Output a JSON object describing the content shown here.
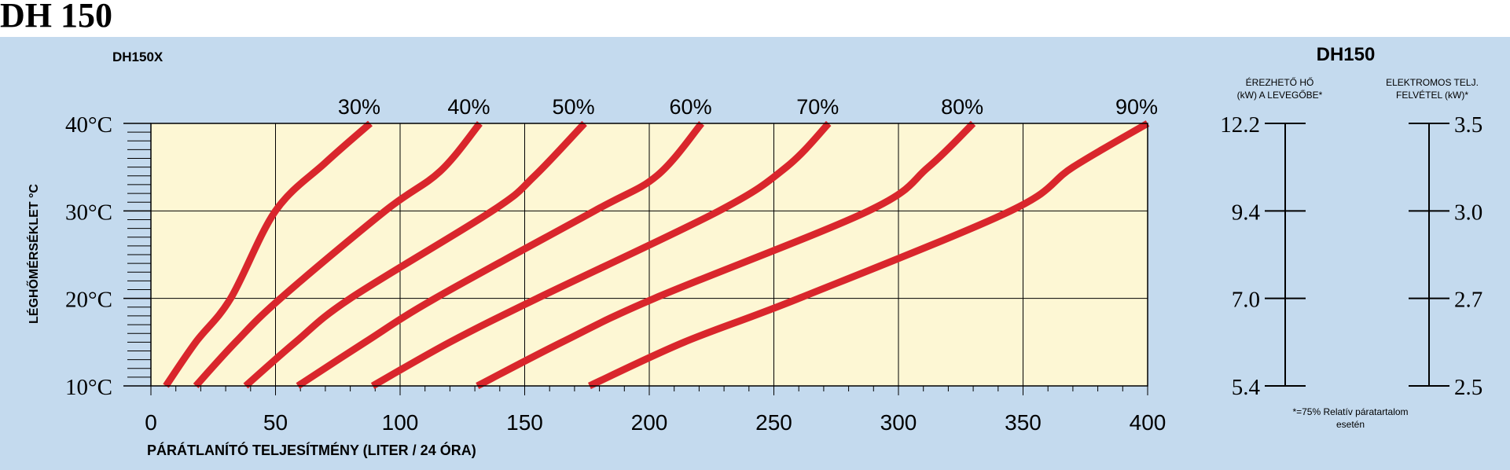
{
  "page_title": "DH 150",
  "chart_data": {
    "type": "line",
    "subtitle": "DH150X",
    "xlabel": "PÁRÁTLANÍTÓ TELJESÍTMÉNY (LITER / 24 ÓRA)",
    "ylabel": "LÉGHŐMÉRSÉKLET °C",
    "xlim": [
      0,
      400
    ],
    "ylim": [
      10,
      40
    ],
    "x_ticks": [
      0,
      50,
      100,
      150,
      200,
      250,
      300,
      350,
      400
    ],
    "x_tick_labels": [
      "0",
      "50",
      "100",
      "150",
      "200",
      "250",
      "300",
      "350",
      "400"
    ],
    "y_ticks": [
      10,
      20,
      30,
      40
    ],
    "y_tick_labels": [
      "10°C",
      "20°C",
      "30°C",
      "40°C"
    ],
    "grid": true,
    "colors": {
      "plot_bg": "#fdf7d4",
      "panel_bg": "#c4daee",
      "curve": "#d9262c",
      "grid": "#000000"
    },
    "series": [
      {
        "name": "30%",
        "points": [
          [
            6,
            10
          ],
          [
            18,
            15
          ],
          [
            32,
            20
          ],
          [
            50,
            30
          ],
          [
            70,
            35.5
          ],
          [
            88,
            40
          ]
        ]
      },
      {
        "name": "40%",
        "points": [
          [
            18,
            10
          ],
          [
            34,
            15
          ],
          [
            52,
            20
          ],
          [
            94,
            30
          ],
          [
            116,
            34.5
          ],
          [
            132,
            40
          ]
        ]
      },
      {
        "name": "50%",
        "points": [
          [
            38,
            10
          ],
          [
            58,
            15
          ],
          [
            80,
            20
          ],
          [
            137,
            30
          ],
          [
            154,
            34
          ],
          [
            174,
            40
          ]
        ]
      },
      {
        "name": "60%",
        "points": [
          [
            59,
            10
          ],
          [
            86,
            15
          ],
          [
            114,
            20
          ],
          [
            178,
            30
          ],
          [
            203,
            34
          ],
          [
            221,
            40
          ]
        ]
      },
      {
        "name": "70%",
        "points": [
          [
            89,
            10
          ],
          [
            120,
            15
          ],
          [
            155,
            20
          ],
          [
            228,
            30
          ],
          [
            255,
            35
          ],
          [
            272,
            40
          ]
        ]
      },
      {
        "name": "80%",
        "points": [
          [
            131,
            10
          ],
          [
            165,
            15
          ],
          [
            202,
            20
          ],
          [
            288,
            30
          ],
          [
            312,
            35
          ],
          [
            330,
            40
          ]
        ]
      },
      {
        "name": "90%",
        "points": [
          [
            176,
            10
          ],
          [
            214,
            15
          ],
          [
            260,
            20
          ],
          [
            345,
            30
          ],
          [
            370,
            35
          ],
          [
            400,
            40
          ]
        ]
      }
    ],
    "side_scales": {
      "title": "DH150",
      "heat": {
        "header_line1": "ÉREZHETŐ HŐ",
        "header_line2": "(kW) A LEVEGŐBE*",
        "ticks": [
          "12.2",
          "9.4",
          "7.0",
          "5.4"
        ],
        "temps": [
          40,
          30,
          20,
          10
        ]
      },
      "power": {
        "header_line1": "ELEKTROMOS TELJ.",
        "header_line2": "FELVÉTEL (kW)*",
        "ticks": [
          "3.5",
          "3.0",
          "2.7",
          "2.5"
        ],
        "temps": [
          40,
          30,
          20,
          10
        ]
      },
      "footnote_line1": "*=75% Relatív páratartalom",
      "footnote_line2": "esetén"
    }
  }
}
